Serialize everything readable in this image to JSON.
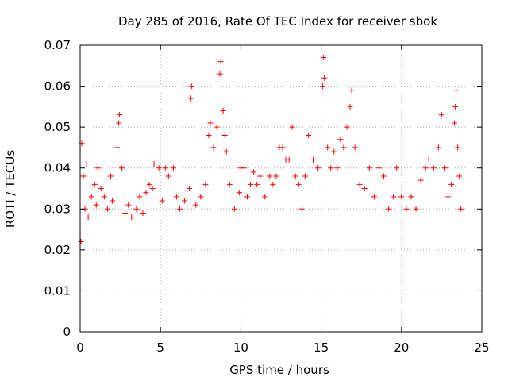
{
  "chart_data": {
    "type": "scatter",
    "title": "Day 285 of 2016, Rate Of TEC Index for receiver sbok",
    "xlabel": "GPS time / hours",
    "ylabel": "ROTI / TECUs",
    "xlim": [
      0,
      25
    ],
    "ylim": [
      0,
      0.07
    ],
    "x_ticks": [
      0,
      5,
      10,
      15,
      20,
      25
    ],
    "y_ticks": [
      0,
      0.01,
      0.02,
      0.03,
      0.04,
      0.05,
      0.06,
      0.07
    ],
    "x_tick_labels": [
      "0",
      "5",
      "10",
      "15",
      "20",
      "25"
    ],
    "y_tick_labels": [
      "0",
      "0.01",
      "0.02",
      "0.03",
      "0.04",
      "0.05",
      "0.06",
      "0.07"
    ],
    "grid": true,
    "marker": "+",
    "marker_color": "#ff0000",
    "series": [
      {
        "name": "ROTI",
        "points": [
          [
            0.05,
            0.022
          ],
          [
            0.1,
            0.046
          ],
          [
            0.2,
            0.038
          ],
          [
            0.3,
            0.03
          ],
          [
            0.4,
            0.041
          ],
          [
            0.5,
            0.028
          ],
          [
            0.7,
            0.033
          ],
          [
            0.9,
            0.036
          ],
          [
            1.0,
            0.031
          ],
          [
            1.1,
            0.04
          ],
          [
            1.3,
            0.035
          ],
          [
            1.5,
            0.033
          ],
          [
            1.7,
            0.03
          ],
          [
            1.9,
            0.038
          ],
          [
            2.0,
            0.032
          ],
          [
            2.3,
            0.045
          ],
          [
            2.4,
            0.051
          ],
          [
            2.45,
            0.053
          ],
          [
            2.6,
            0.04
          ],
          [
            2.8,
            0.029
          ],
          [
            3.0,
            0.031
          ],
          [
            3.2,
            0.028
          ],
          [
            3.5,
            0.03
          ],
          [
            3.7,
            0.033
          ],
          [
            3.9,
            0.029
          ],
          [
            4.1,
            0.034
          ],
          [
            4.3,
            0.036
          ],
          [
            4.5,
            0.035
          ],
          [
            4.6,
            0.041
          ],
          [
            4.9,
            0.04
          ],
          [
            5.1,
            0.032
          ],
          [
            5.3,
            0.04
          ],
          [
            5.5,
            0.038
          ],
          [
            5.8,
            0.04
          ],
          [
            6.0,
            0.033
          ],
          [
            6.2,
            0.03
          ],
          [
            6.5,
            0.032
          ],
          [
            6.8,
            0.035
          ],
          [
            6.9,
            0.057
          ],
          [
            6.95,
            0.06
          ],
          [
            7.2,
            0.031
          ],
          [
            7.5,
            0.033
          ],
          [
            7.8,
            0.036
          ],
          [
            8.0,
            0.048
          ],
          [
            8.1,
            0.051
          ],
          [
            8.3,
            0.045
          ],
          [
            8.5,
            0.05
          ],
          [
            8.7,
            0.063
          ],
          [
            8.75,
            0.066
          ],
          [
            8.9,
            0.054
          ],
          [
            9.0,
            0.048
          ],
          [
            9.1,
            0.044
          ],
          [
            9.3,
            0.036
          ],
          [
            9.6,
            0.03
          ],
          [
            9.9,
            0.034
          ],
          [
            10.0,
            0.04
          ],
          [
            10.2,
            0.04
          ],
          [
            10.4,
            0.033
          ],
          [
            10.6,
            0.036
          ],
          [
            10.8,
            0.039
          ],
          [
            11.0,
            0.036
          ],
          [
            11.2,
            0.038
          ],
          [
            11.5,
            0.033
          ],
          [
            11.8,
            0.038
          ],
          [
            12.0,
            0.036
          ],
          [
            12.2,
            0.038
          ],
          [
            12.4,
            0.045
          ],
          [
            12.6,
            0.045
          ],
          [
            12.8,
            0.042
          ],
          [
            13.0,
            0.042
          ],
          [
            13.2,
            0.05
          ],
          [
            13.4,
            0.038
          ],
          [
            13.6,
            0.036
          ],
          [
            13.8,
            0.03
          ],
          [
            14.0,
            0.038
          ],
          [
            14.2,
            0.048
          ],
          [
            14.5,
            0.042
          ],
          [
            14.8,
            0.04
          ],
          [
            15.1,
            0.06
          ],
          [
            15.15,
            0.067
          ],
          [
            15.2,
            0.062
          ],
          [
            15.4,
            0.045
          ],
          [
            15.6,
            0.04
          ],
          [
            15.8,
            0.044
          ],
          [
            16.0,
            0.04
          ],
          [
            16.2,
            0.047
          ],
          [
            16.4,
            0.045
          ],
          [
            16.6,
            0.05
          ],
          [
            16.8,
            0.055
          ],
          [
            16.9,
            0.059
          ],
          [
            17.1,
            0.045
          ],
          [
            17.4,
            0.036
          ],
          [
            17.7,
            0.035
          ],
          [
            18.0,
            0.04
          ],
          [
            18.3,
            0.033
          ],
          [
            18.6,
            0.04
          ],
          [
            18.9,
            0.038
          ],
          [
            19.2,
            0.03
          ],
          [
            19.5,
            0.033
          ],
          [
            19.7,
            0.04
          ],
          [
            20.0,
            0.033
          ],
          [
            20.3,
            0.03
          ],
          [
            20.6,
            0.033
          ],
          [
            20.9,
            0.03
          ],
          [
            21.2,
            0.037
          ],
          [
            21.5,
            0.04
          ],
          [
            21.7,
            0.042
          ],
          [
            22.0,
            0.04
          ],
          [
            22.3,
            0.045
          ],
          [
            22.5,
            0.053
          ],
          [
            22.7,
            0.04
          ],
          [
            22.9,
            0.033
          ],
          [
            23.1,
            0.036
          ],
          [
            23.3,
            0.051
          ],
          [
            23.35,
            0.055
          ],
          [
            23.4,
            0.059
          ],
          [
            23.5,
            0.045
          ],
          [
            23.6,
            0.038
          ],
          [
            23.7,
            0.03
          ]
        ]
      }
    ]
  }
}
